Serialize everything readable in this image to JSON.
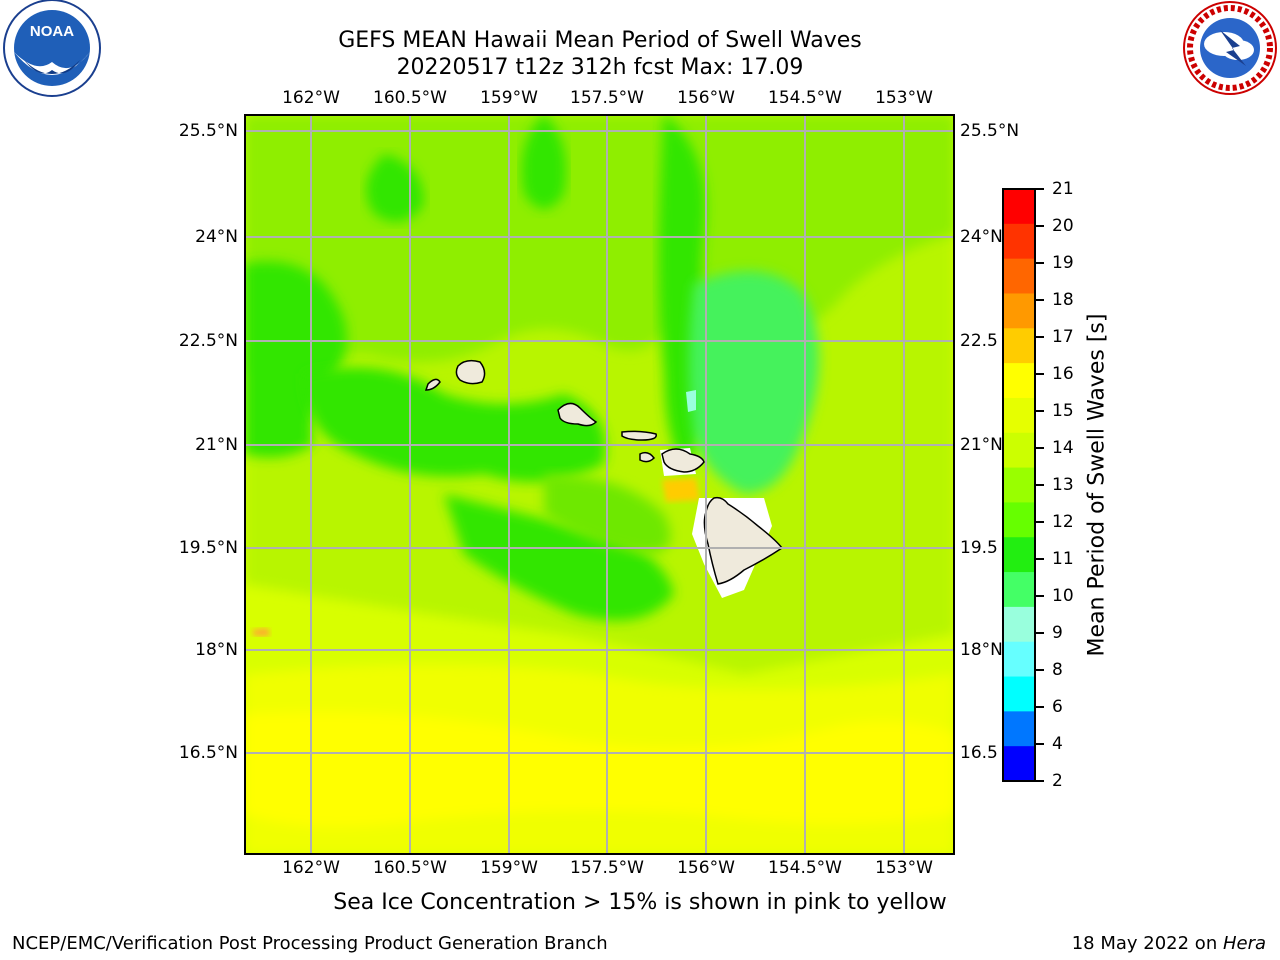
{
  "header": {
    "title_line1": "GEFS MEAN Hawaii Mean Period of Swell Waves",
    "title_line2": "20220517 t12z 312h fcst   Max: 17.09"
  },
  "logos": {
    "left": {
      "name": "noaa-logo",
      "text": "NOAA"
    },
    "right": {
      "name": "nws-logo",
      "text": "NATIONAL WEATHER SERVICE"
    }
  },
  "map": {
    "lon_labels": [
      "162°W",
      "160.5°W",
      "159°W",
      "157.5°W",
      "156°W",
      "154.5°W",
      "153°W"
    ],
    "lat_labels_left": [
      "25.5°N",
      "24°N",
      "22.5°N",
      "21°N",
      "19.5°N",
      "18°N",
      "16.5°N"
    ],
    "lat_labels_right": [
      "25.5°N",
      "24°N",
      "22.5",
      "21°N",
      "19.5",
      "18°N",
      "16.5"
    ],
    "grid_color": "#b0b0b0"
  },
  "colorbar": {
    "label": "Mean Period of Swell Waves [s]",
    "ticks": [
      "21",
      "20",
      "19",
      "18",
      "17",
      "16",
      "15",
      "14",
      "13",
      "12",
      "11",
      "10",
      "9",
      "8",
      "6",
      "4",
      "2"
    ],
    "colors_top_to_bottom": [
      "#ff0000",
      "#ff3300",
      "#ff6600",
      "#ff9900",
      "#ffcc00",
      "#ffff00",
      "#e6ff00",
      "#ccff00",
      "#99ff00",
      "#66ff00",
      "#22ee11",
      "#44ff66",
      "#99ffdd",
      "#66ffff",
      "#00ffff",
      "#0077ff",
      "#0000ff"
    ]
  },
  "notes": {
    "sea_ice": "Sea Ice Concentration > 15% is shown in pink to yellow"
  },
  "footer": {
    "left": "NCEP/EMC/Verification Post Processing Product Generation Branch",
    "right_prefix": "18 May 2022 on ",
    "right_host": "Hera"
  }
}
